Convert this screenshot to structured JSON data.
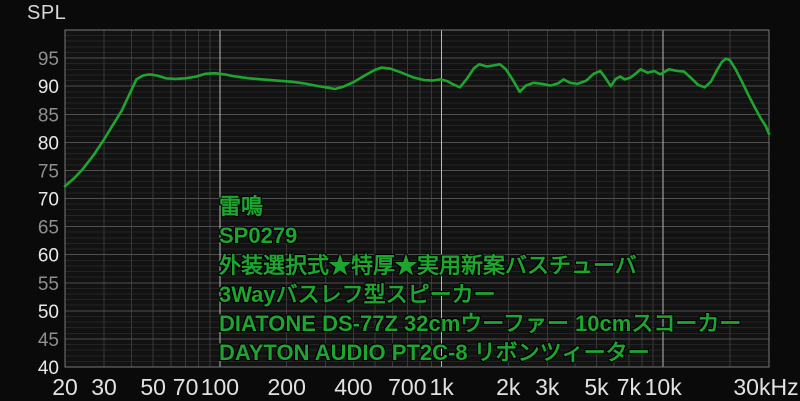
{
  "chart_data": {
    "type": "line",
    "title": "SPL",
    "ylabel": "SPL",
    "xlabel": "",
    "x_scale": "log",
    "xlim": [
      20,
      30000
    ],
    "ylim": [
      40,
      100
    ],
    "grid": true,
    "legend": false,
    "y_ticks": [
      95,
      90,
      85,
      80,
      75,
      70,
      65,
      60,
      55,
      50,
      45,
      40
    ],
    "x_ticks": [
      {
        "f": 20,
        "label": "20"
      },
      {
        "f": 30,
        "label": "30"
      },
      {
        "f": 50,
        "label": "50"
      },
      {
        "f": 70,
        "label": "70"
      },
      {
        "f": 100,
        "label": "100"
      },
      {
        "f": 200,
        "label": "200"
      },
      {
        "f": 400,
        "label": "400"
      },
      {
        "f": 700,
        "label": "700"
      },
      {
        "f": 1000,
        "label": "1k"
      },
      {
        "f": 2000,
        "label": "2k"
      },
      {
        "f": 3000,
        "label": "3k"
      },
      {
        "f": 5000,
        "label": "5k"
      },
      {
        "f": 7000,
        "label": "7k"
      },
      {
        "f": 10000,
        "label": "10k"
      },
      {
        "f": 30000,
        "label": "30kHz"
      }
    ],
    "x_gridlines_minor": [
      30,
      40,
      50,
      60,
      70,
      80,
      90,
      200,
      300,
      400,
      500,
      600,
      700,
      800,
      900,
      2000,
      3000,
      4000,
      5000,
      6000,
      7000,
      8000,
      9000,
      20000
    ],
    "x_gridlines_major": [
      100,
      1000,
      10000
    ],
    "series": [
      {
        "color": "#1ea52f",
        "points": [
          [
            20,
            72.2
          ],
          [
            22,
            73.6
          ],
          [
            24,
            75.2
          ],
          [
            27,
            77.8
          ],
          [
            30,
            80.5
          ],
          [
            33,
            83.2
          ],
          [
            36,
            85.6
          ],
          [
            39,
            88.5
          ],
          [
            42,
            91.2
          ],
          [
            45,
            91.9
          ],
          [
            48,
            92.1
          ],
          [
            52,
            91.9
          ],
          [
            57,
            91.4
          ],
          [
            63,
            91.3
          ],
          [
            70,
            91.4
          ],
          [
            78,
            91.7
          ],
          [
            86,
            92.2
          ],
          [
            95,
            92.3
          ],
          [
            105,
            92.1
          ],
          [
            118,
            91.7
          ],
          [
            135,
            91.4
          ],
          [
            155,
            91.2
          ],
          [
            180,
            91.0
          ],
          [
            210,
            90.8
          ],
          [
            240,
            90.5
          ],
          [
            270,
            90.1
          ],
          [
            300,
            89.8
          ],
          [
            330,
            89.5
          ],
          [
            360,
            89.9
          ],
          [
            400,
            90.7
          ],
          [
            450,
            91.9
          ],
          [
            500,
            92.9
          ],
          [
            535,
            93.3
          ],
          [
            590,
            93.1
          ],
          [
            660,
            92.4
          ],
          [
            740,
            91.6
          ],
          [
            830,
            91.1
          ],
          [
            910,
            91.0
          ],
          [
            990,
            91.2
          ],
          [
            1060,
            90.9
          ],
          [
            1130,
            90.3
          ],
          [
            1210,
            89.8
          ],
          [
            1300,
            91.3
          ],
          [
            1400,
            93.2
          ],
          [
            1480,
            93.9
          ],
          [
            1600,
            93.5
          ],
          [
            1720,
            93.7
          ],
          [
            1830,
            93.9
          ],
          [
            1950,
            93.0
          ],
          [
            2090,
            91.2
          ],
          [
            2250,
            89.0
          ],
          [
            2400,
            90.1
          ],
          [
            2600,
            90.6
          ],
          [
            2850,
            90.4
          ],
          [
            3100,
            90.1
          ],
          [
            3350,
            90.5
          ],
          [
            3550,
            91.2
          ],
          [
            3800,
            90.6
          ],
          [
            4100,
            90.4
          ],
          [
            4500,
            91.0
          ],
          [
            4850,
            92.2
          ],
          [
            5200,
            92.7
          ],
          [
            5500,
            91.4
          ],
          [
            5800,
            90.0
          ],
          [
            6100,
            91.3
          ],
          [
            6400,
            91.7
          ],
          [
            6700,
            91.2
          ],
          [
            7100,
            91.5
          ],
          [
            7500,
            92.2
          ],
          [
            7900,
            93.0
          ],
          [
            8500,
            92.4
          ],
          [
            9100,
            92.7
          ],
          [
            9700,
            92.1
          ],
          [
            10600,
            93.0
          ],
          [
            11600,
            92.7
          ],
          [
            12400,
            92.6
          ],
          [
            13300,
            91.5
          ],
          [
            14400,
            90.2
          ],
          [
            15400,
            89.8
          ],
          [
            16400,
            90.8
          ],
          [
            17500,
            92.9
          ],
          [
            18400,
            94.3
          ],
          [
            19200,
            94.9
          ],
          [
            20000,
            94.6
          ],
          [
            21200,
            93.0
          ],
          [
            22700,
            90.7
          ],
          [
            24300,
            88.3
          ],
          [
            26000,
            86.1
          ],
          [
            27600,
            84.2
          ],
          [
            29000,
            82.9
          ],
          [
            30000,
            81.5
          ]
        ]
      }
    ]
  },
  "annotations": {
    "lines": [
      "雷鳴",
      "SP0279",
      "外装選択式★特厚★実用新案バスチューバ",
      "3Wayバスレフ型スピーカー",
      "DIATONE DS-77Z 32cmウーファー 10cmスコーカー",
      "DAYTON AUDIO PT2C-8 リボンツィーター"
    ]
  },
  "colors": {
    "background": "#0a0a0a",
    "plot_background": "#121212",
    "grid_minor_h": "#242424",
    "grid_minor_v": "#383838",
    "grid_major_h": "#4f4f4f",
    "grid_decade_v": "#b8b8b8",
    "plot_border": "#787878",
    "curve": "#1ea52f",
    "annotation_text": "#1ea52f",
    "label_bright": "#e8e8e8",
    "label_dim": "#8f8f8f",
    "title_text": "#d8d8d8"
  }
}
